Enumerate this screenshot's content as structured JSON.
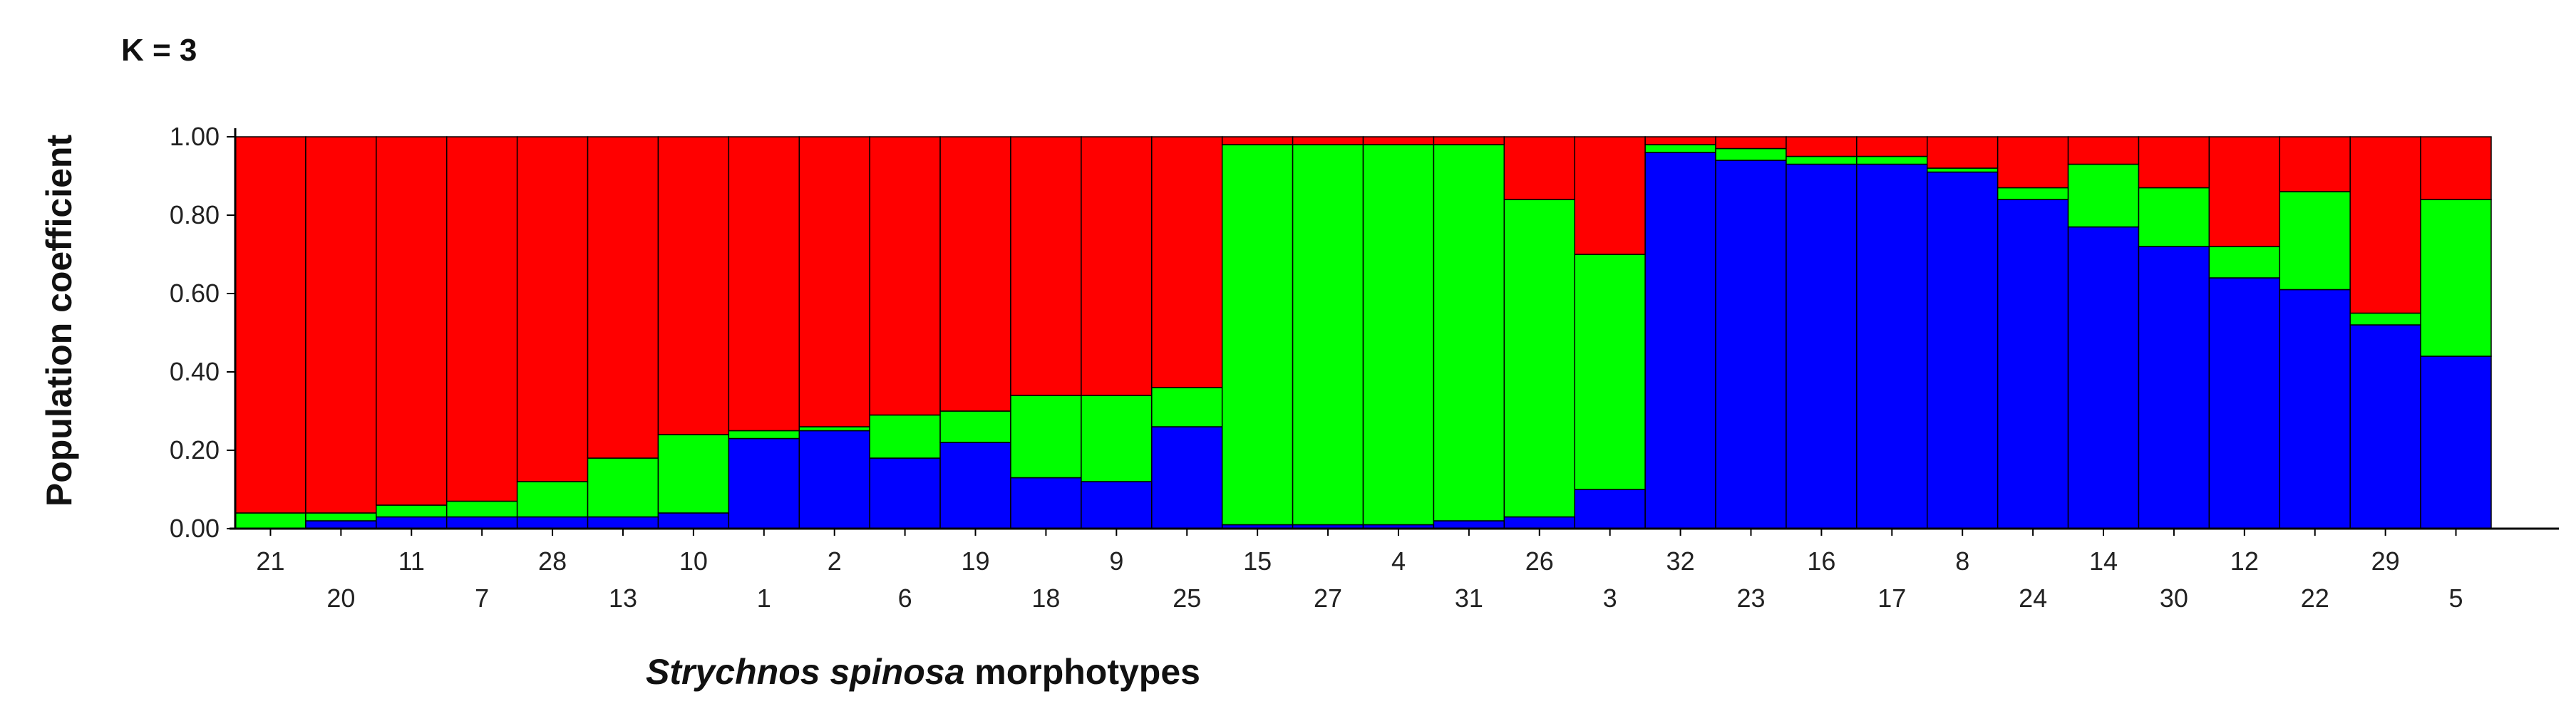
{
  "chart_data": {
    "type": "bar",
    "stacked": true,
    "title": "K = 3",
    "ylabel": "Population coefficient",
    "xlabel_italic": "Strychnos spinosa",
    "xlabel_rest": " morphotypes",
    "ylim": [
      0,
      1
    ],
    "yticks": [
      "0.00",
      "0.20",
      "0.40",
      "0.60",
      "0.80",
      "1.00"
    ],
    "colors": {
      "blue": "#0000ff",
      "green": "#00ff00",
      "red": "#ff0000"
    },
    "categories": [
      "21",
      "20",
      "11",
      "7",
      "28",
      "13",
      "10",
      "1",
      "2",
      "6",
      "19",
      "18",
      "9",
      "25",
      "15",
      "27",
      "4",
      "31",
      "26",
      "3",
      "32",
      "23",
      "16",
      "17",
      "8",
      "24",
      "14",
      "30",
      "12",
      "22",
      "29",
      "5"
    ],
    "series": [
      {
        "color": "blue",
        "values": [
          0.0,
          0.02,
          0.03,
          0.03,
          0.03,
          0.03,
          0.04,
          0.23,
          0.25,
          0.18,
          0.22,
          0.13,
          0.12,
          0.26,
          0.01,
          0.01,
          0.01,
          0.02,
          0.03,
          0.1,
          0.96,
          0.94,
          0.93,
          0.93,
          0.91,
          0.84,
          0.77,
          0.72,
          0.64,
          0.61,
          0.52,
          0.44
        ]
      },
      {
        "color": "green",
        "values": [
          0.04,
          0.02,
          0.03,
          0.04,
          0.09,
          0.15,
          0.2,
          0.02,
          0.01,
          0.11,
          0.08,
          0.21,
          0.22,
          0.1,
          0.97,
          0.97,
          0.97,
          0.96,
          0.81,
          0.6,
          0.02,
          0.03,
          0.02,
          0.02,
          0.01,
          0.03,
          0.16,
          0.15,
          0.08,
          0.25,
          0.03,
          0.4
        ]
      },
      {
        "color": "red",
        "values": [
          0.96,
          0.96,
          0.94,
          0.93,
          0.88,
          0.82,
          0.76,
          0.75,
          0.74,
          0.71,
          0.7,
          0.66,
          0.66,
          0.64,
          0.02,
          0.02,
          0.02,
          0.02,
          0.16,
          0.3,
          0.02,
          0.03,
          0.05,
          0.05,
          0.08,
          0.13,
          0.07,
          0.13,
          0.28,
          0.14,
          0.45,
          0.16
        ]
      }
    ]
  }
}
